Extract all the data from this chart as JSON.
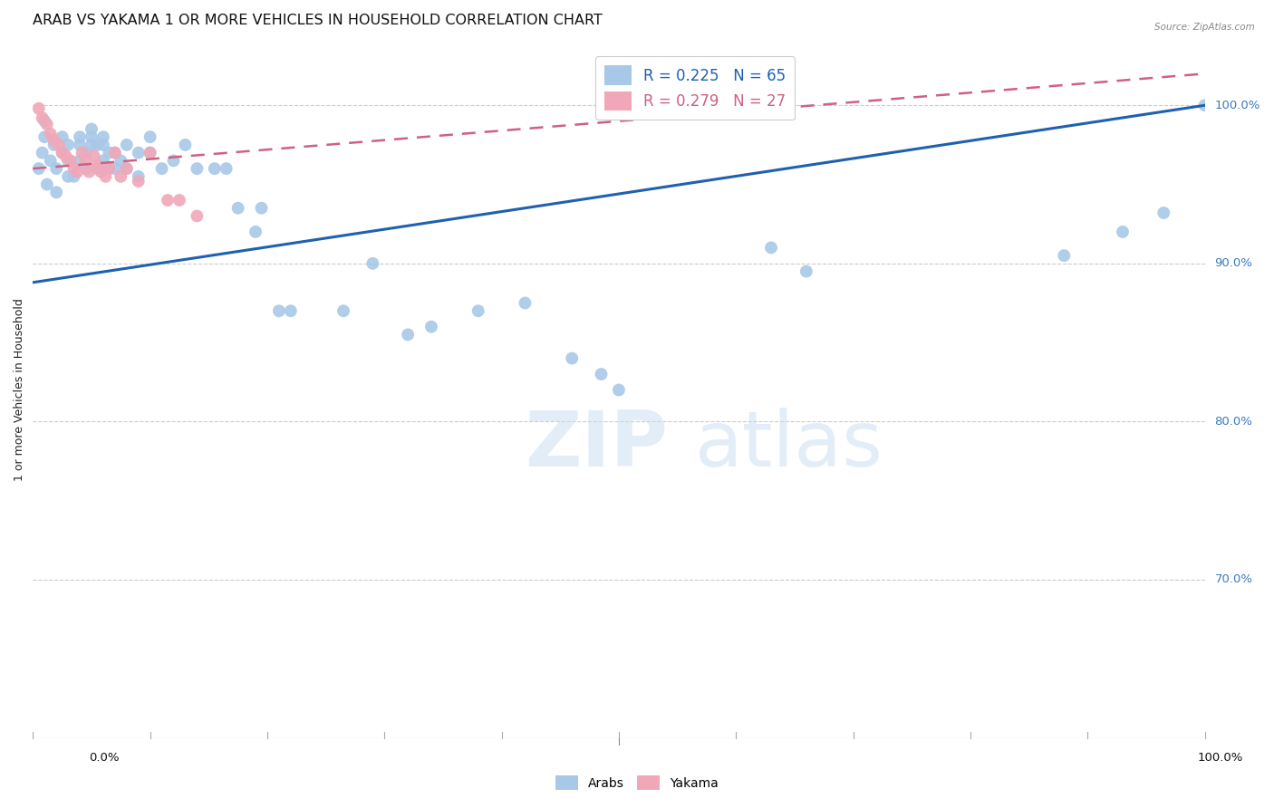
{
  "title": "ARAB VS YAKAMA 1 OR MORE VEHICLES IN HOUSEHOLD CORRELATION CHART",
  "source": "Source: ZipAtlas.com",
  "ylabel": "1 or more Vehicles in Household",
  "ytick_labels": [
    "100.0%",
    "90.0%",
    "80.0%",
    "70.0%"
  ],
  "ytick_values": [
    1.0,
    0.9,
    0.8,
    0.7
  ],
  "xlim": [
    0.0,
    1.0
  ],
  "ylim": [
    0.6,
    1.04
  ],
  "arab_color": "#a8c8e8",
  "yakama_color": "#f0a8b8",
  "arab_line_color": "#2060b0",
  "yakama_line_color": "#d06080",
  "background_color": "#ffffff",
  "watermark_zip": "ZIP",
  "watermark_atlas": "atlas",
  "arab_x": [
    0.005,
    0.008,
    0.01,
    0.01,
    0.012,
    0.015,
    0.018,
    0.02,
    0.02,
    0.025,
    0.025,
    0.03,
    0.03,
    0.03,
    0.035,
    0.04,
    0.04,
    0.04,
    0.045,
    0.045,
    0.05,
    0.05,
    0.05,
    0.055,
    0.055,
    0.06,
    0.06,
    0.06,
    0.065,
    0.065,
    0.07,
    0.07,
    0.075,
    0.08,
    0.08,
    0.09,
    0.09,
    0.1,
    0.1,
    0.11,
    0.12,
    0.13,
    0.14,
    0.155,
    0.165,
    0.175,
    0.19,
    0.195,
    0.21,
    0.22,
    0.265,
    0.29,
    0.32,
    0.34,
    0.38,
    0.42,
    0.46,
    0.485,
    0.5,
    0.63,
    0.66,
    0.88,
    0.93,
    0.965,
    1.0
  ],
  "arab_y": [
    0.96,
    0.97,
    0.98,
    0.99,
    0.95,
    0.965,
    0.975,
    0.96,
    0.945,
    0.97,
    0.98,
    0.955,
    0.965,
    0.975,
    0.955,
    0.965,
    0.975,
    0.98,
    0.96,
    0.97,
    0.975,
    0.98,
    0.985,
    0.96,
    0.975,
    0.965,
    0.975,
    0.98,
    0.96,
    0.97,
    0.96,
    0.97,
    0.965,
    0.96,
    0.975,
    0.955,
    0.97,
    0.97,
    0.98,
    0.96,
    0.965,
    0.975,
    0.96,
    0.96,
    0.96,
    0.935,
    0.92,
    0.935,
    0.87,
    0.87,
    0.87,
    0.9,
    0.855,
    0.86,
    0.87,
    0.875,
    0.84,
    0.83,
    0.82,
    0.91,
    0.895,
    0.905,
    0.92,
    0.932,
    1.0
  ],
  "yakama_x": [
    0.005,
    0.008,
    0.012,
    0.015,
    0.018,
    0.022,
    0.025,
    0.028,
    0.032,
    0.035,
    0.038,
    0.042,
    0.045,
    0.048,
    0.052,
    0.055,
    0.058,
    0.062,
    0.065,
    0.07,
    0.075,
    0.08,
    0.09,
    0.1,
    0.115,
    0.125,
    0.14
  ],
  "yakama_y": [
    0.998,
    0.992,
    0.988,
    0.982,
    0.978,
    0.975,
    0.97,
    0.968,
    0.965,
    0.96,
    0.958,
    0.97,
    0.965,
    0.958,
    0.968,
    0.962,
    0.958,
    0.955,
    0.96,
    0.97,
    0.955,
    0.96,
    0.952,
    0.97,
    0.94,
    0.94,
    0.93
  ],
  "arab_line_x": [
    0.0,
    1.0
  ],
  "arab_line_y": [
    0.888,
    1.0
  ],
  "yakama_line_x": [
    0.0,
    1.0
  ],
  "yakama_line_y": [
    0.96,
    1.02
  ],
  "marker_size": 100,
  "title_fontsize": 11.5,
  "axis_label_fontsize": 9,
  "tick_fontsize": 9.5,
  "legend_fontsize": 12
}
